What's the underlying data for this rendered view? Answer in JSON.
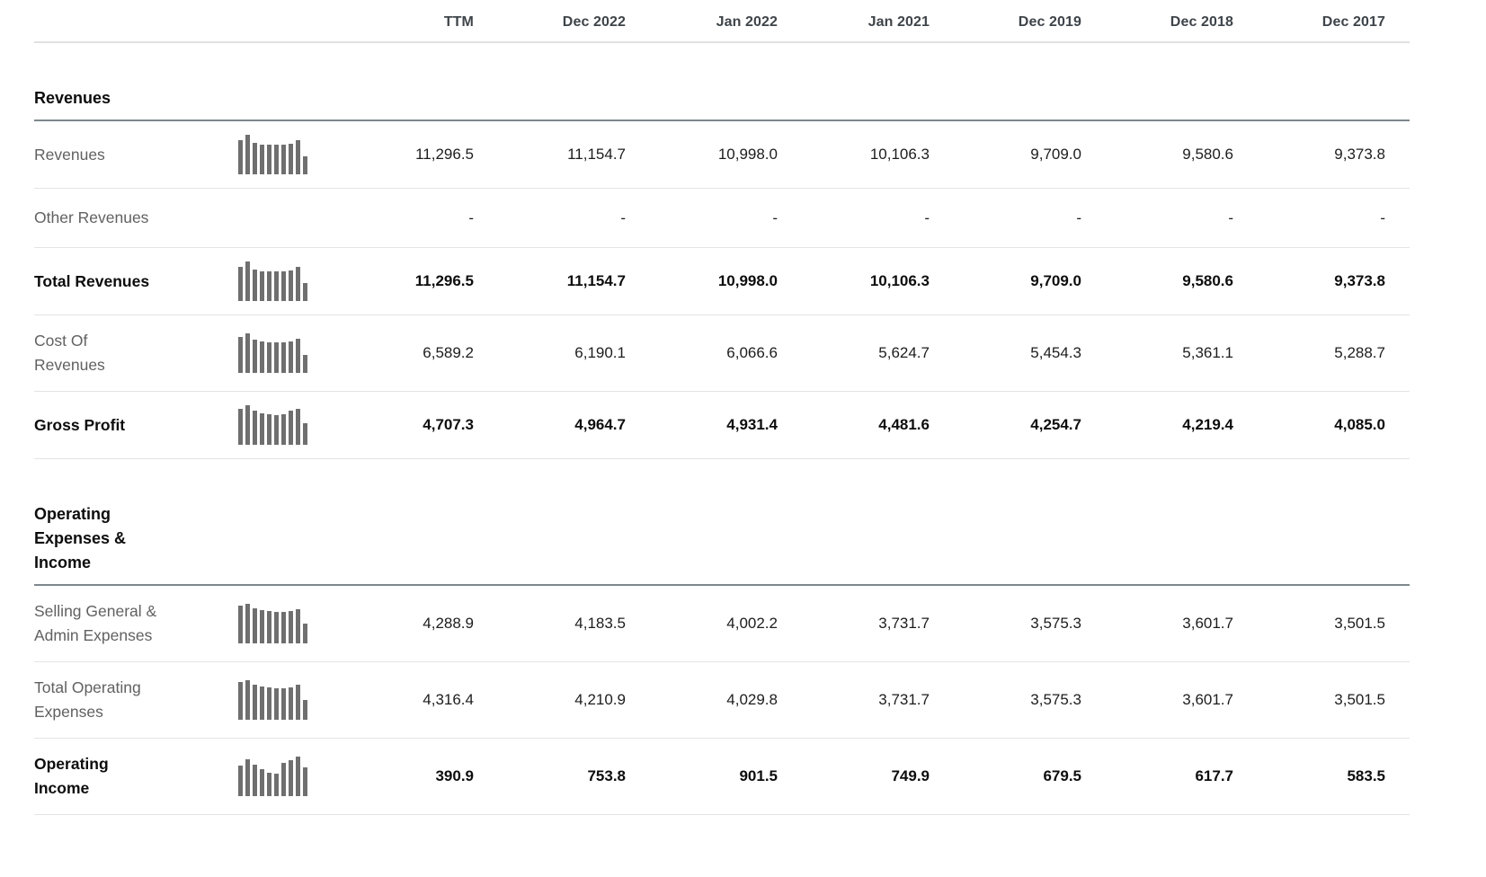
{
  "table": {
    "columns": [
      "TTM",
      "Dec 2022",
      "Jan 2022",
      "Jan 2021",
      "Dec 2019",
      "Dec 2018",
      "Dec 2017"
    ],
    "sections": [
      {
        "title": "Revenues",
        "rows": [
          {
            "label": "Revenues",
            "bold": false,
            "sparkline": [
              0.86,
              1.0,
              0.8,
              0.76,
              0.76,
              0.76,
              0.76,
              0.78,
              0.86,
              0.45
            ],
            "values": [
              "11,296.5",
              "11,154.7",
              "10,998.0",
              "10,106.3",
              "9,709.0",
              "9,580.6",
              "9,373.8"
            ]
          },
          {
            "label": "Other Revenues",
            "bold": false,
            "sparkline": null,
            "values": [
              "-",
              "-",
              "-",
              "-",
              "-",
              "-",
              "-"
            ]
          },
          {
            "label": "Total Revenues",
            "bold": true,
            "sparkline": [
              0.86,
              1.0,
              0.8,
              0.76,
              0.76,
              0.76,
              0.76,
              0.78,
              0.86,
              0.45
            ],
            "values": [
              "11,296.5",
              "11,154.7",
              "10,998.0",
              "10,106.3",
              "9,709.0",
              "9,580.6",
              "9,373.8"
            ]
          },
          {
            "label": "Cost Of\nRevenues",
            "bold": false,
            "sparkline": [
              0.92,
              1.0,
              0.84,
              0.8,
              0.78,
              0.78,
              0.78,
              0.8,
              0.86,
              0.45
            ],
            "values": [
              "6,589.2",
              "6,190.1",
              "6,066.6",
              "5,624.7",
              "5,454.3",
              "5,361.1",
              "5,288.7"
            ]
          },
          {
            "label": "Gross Profit",
            "bold": true,
            "sparkline": [
              0.9,
              1.0,
              0.86,
              0.8,
              0.78,
              0.74,
              0.78,
              0.86,
              0.92,
              0.55
            ],
            "values": [
              "4,707.3",
              "4,964.7",
              "4,931.4",
              "4,481.6",
              "4,254.7",
              "4,219.4",
              "4,085.0"
            ]
          }
        ]
      },
      {
        "title": "Operating\nExpenses &\nIncome",
        "rows": [
          {
            "label": "Selling General &\nAdmin Expenses",
            "bold": false,
            "sparkline": [
              0.95,
              1.0,
              0.88,
              0.84,
              0.82,
              0.8,
              0.8,
              0.82,
              0.86,
              0.5
            ],
            "values": [
              "4,288.9",
              "4,183.5",
              "4,002.2",
              "3,731.7",
              "3,575.3",
              "3,601.7",
              "3,501.5"
            ]
          },
          {
            "label": "Total Operating\nExpenses",
            "bold": false,
            "sparkline": [
              0.95,
              1.0,
              0.88,
              0.84,
              0.82,
              0.8,
              0.8,
              0.82,
              0.88,
              0.5
            ],
            "values": [
              "4,316.4",
              "4,210.9",
              "4,029.8",
              "3,731.7",
              "3,575.3",
              "3,601.7",
              "3,501.5"
            ]
          },
          {
            "label": "Operating\nIncome",
            "bold": true,
            "sparkline": [
              0.77,
              0.94,
              0.79,
              0.68,
              0.6,
              0.56,
              0.85,
              0.91,
              1.0,
              0.73
            ],
            "values": [
              "390.9",
              "753.8",
              "901.5",
              "749.9",
              "679.5",
              "617.7",
              "583.5"
            ]
          }
        ]
      }
    ]
  },
  "colors": {
    "section_divider": "#7d878d",
    "row_divider": "#e4e4e4",
    "spark_bar": "#6f6f6f",
    "label_gray": "#616161",
    "header_text": "#3e4449"
  }
}
